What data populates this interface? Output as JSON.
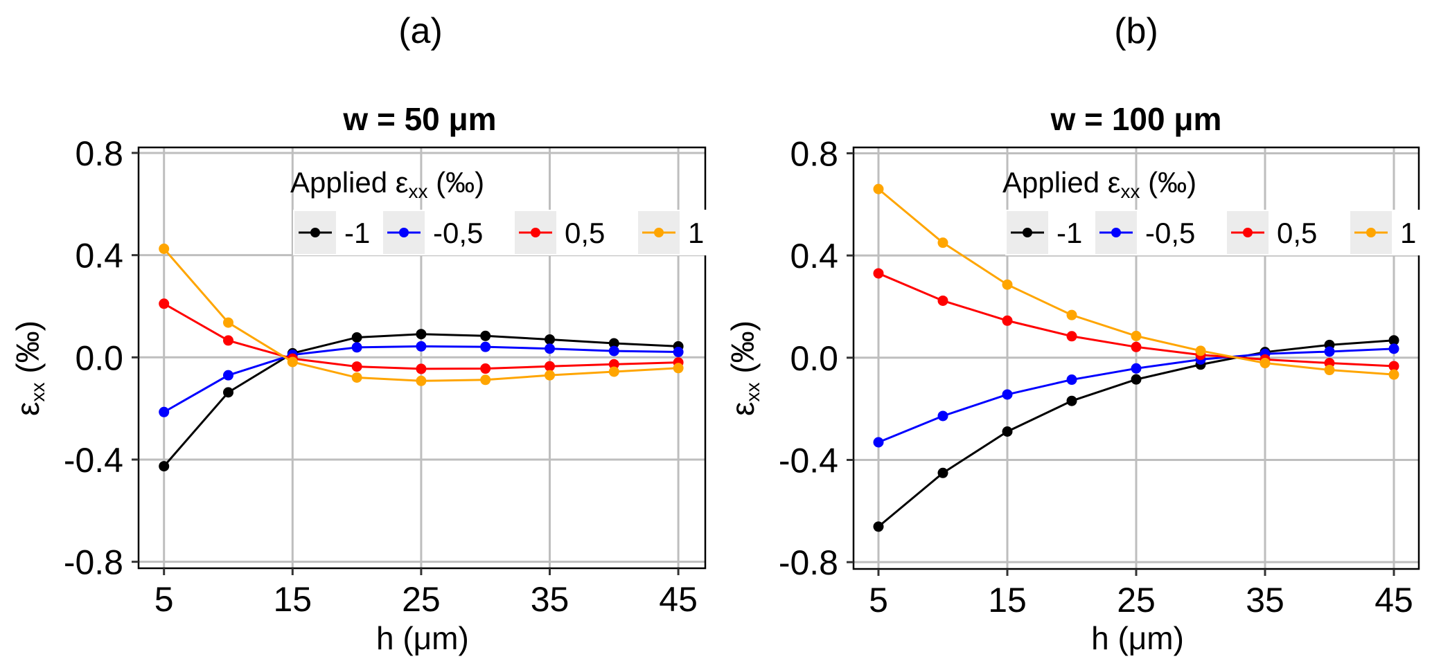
{
  "figure": {
    "panels": [
      "(a)",
      "(b)"
    ]
  },
  "chart_data": [
    {
      "type": "line",
      "panel_label": "(a)",
      "title": "w = 50 μm",
      "xlabel": "h (μm)",
      "ylabel": "εxx (‰)",
      "ylabel_parts": {
        "symbol": "ε",
        "subscript": "xx",
        "unit": " (‰)"
      },
      "xlim": [
        3.4,
        46.7
      ],
      "ylim": [
        -0.84,
        0.83
      ],
      "x_ticks": [
        5,
        15,
        25,
        35,
        45
      ],
      "x_tick_labels": [
        "5",
        "15",
        "25",
        "35",
        "45"
      ],
      "y_ticks": [
        0.8,
        0.4,
        0.0,
        -0.4,
        -0.8
      ],
      "y_tick_labels": [
        "0.8",
        "0.4",
        "0.0",
        "-0.4",
        "-0.8"
      ],
      "grid": true,
      "legend": {
        "title": "Applied εxx (‰)",
        "title_parts": {
          "prefix": "Applied ",
          "symbol": "ε",
          "subscript": "xx",
          "unit": " (‰)"
        },
        "placement": "top-right",
        "entries": [
          "-1",
          "-0,5",
          "0,5",
          "1"
        ]
      },
      "x": [
        5,
        10,
        15,
        20,
        25,
        30,
        35,
        40,
        45
      ],
      "series": [
        {
          "name": "-1",
          "color": "#000000",
          "values": [
            -0.426,
            -0.137,
            0.016,
            0.078,
            0.091,
            0.084,
            0.07,
            0.055,
            0.043
          ]
        },
        {
          "name": "-0,5",
          "color": "#0000ff",
          "values": [
            -0.214,
            -0.07,
            0.01,
            0.039,
            0.043,
            0.041,
            0.034,
            0.025,
            0.021
          ]
        },
        {
          "name": "0,5",
          "color": "#ff0000",
          "values": [
            0.21,
            0.066,
            -0.005,
            -0.036,
            -0.045,
            -0.044,
            -0.035,
            -0.027,
            -0.02
          ]
        },
        {
          "name": "1",
          "color": "#ffa500",
          "values": [
            0.425,
            0.136,
            -0.018,
            -0.079,
            -0.092,
            -0.088,
            -0.07,
            -0.056,
            -0.042
          ]
        }
      ]
    },
    {
      "type": "line",
      "panel_label": "(b)",
      "title": "w = 100 μm",
      "xlabel": "h (μm)",
      "ylabel": "εxx (‰)",
      "ylabel_parts": {
        "symbol": "ε",
        "subscript": "xx",
        "unit": " (‰)"
      },
      "xlim": [
        3.4,
        46.7
      ],
      "ylim": [
        -0.84,
        0.83
      ],
      "x_ticks": [
        5,
        15,
        25,
        35,
        45
      ],
      "x_tick_labels": [
        "5",
        "15",
        "25",
        "35",
        "45"
      ],
      "y_ticks": [
        0.8,
        0.4,
        0.0,
        -0.4,
        -0.8
      ],
      "y_tick_labels": [
        "0.8",
        "0.4",
        "0.0",
        "-0.4",
        "-0.8"
      ],
      "grid": true,
      "legend": {
        "title": "Applied εxx (‰)",
        "title_parts": {
          "prefix": "Applied ",
          "symbol": "ε",
          "subscript": "xx",
          "unit": " (‰)"
        },
        "placement": "top-right",
        "entries": [
          "-1",
          "-0,5",
          "0,5",
          "1"
        ]
      },
      "x": [
        5,
        10,
        15,
        20,
        25,
        30,
        35,
        40,
        45
      ],
      "series": [
        {
          "name": "-1",
          "color": "#000000",
          "values": [
            -0.661,
            -0.451,
            -0.289,
            -0.169,
            -0.085,
            -0.027,
            0.022,
            0.05,
            0.068
          ]
        },
        {
          "name": "-0,5",
          "color": "#0000ff",
          "values": [
            -0.331,
            -0.228,
            -0.144,
            -0.086,
            -0.042,
            -0.007,
            0.015,
            0.024,
            0.035
          ]
        },
        {
          "name": "0,5",
          "color": "#ff0000",
          "values": [
            0.33,
            0.223,
            0.145,
            0.084,
            0.042,
            0.011,
            -0.007,
            -0.021,
            -0.033
          ]
        },
        {
          "name": "1",
          "color": "#ffa500",
          "values": [
            0.66,
            0.45,
            0.286,
            0.167,
            0.085,
            0.027,
            -0.021,
            -0.048,
            -0.066
          ]
        }
      ]
    }
  ]
}
